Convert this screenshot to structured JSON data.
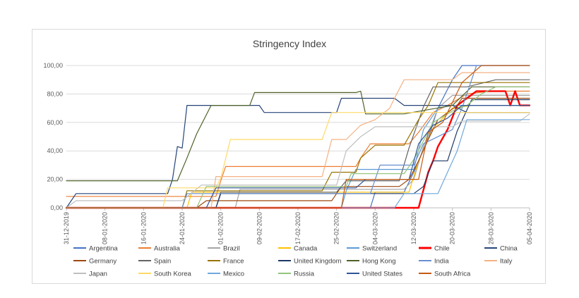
{
  "chart_data": {
    "type": "line",
    "title": "Stringency Index",
    "xlabel": "",
    "ylabel": "",
    "ylim": [
      0,
      100
    ],
    "y_ticks": [
      "0,00",
      "20,00",
      "40,00",
      "60,00",
      "80,00",
      "100,00"
    ],
    "x_range": [
      "2019-12-31",
      "2020-04-05"
    ],
    "x_tick_labels": [
      "31-12-2019",
      "08-01-2020",
      "16-01-2020",
      "24-01-2020",
      "01-02-2020",
      "09-02-2020",
      "17-02-2020",
      "25-02-2020",
      "04-03-2020",
      "12-03-2020",
      "20-03-2020",
      "28-03-2020",
      "05-04-2020"
    ],
    "grid": "horizontal",
    "legend_position": "bottom",
    "series": [
      {
        "name": "Argentina",
        "color": "#4472c4",
        "width": 1.2,
        "points": [
          [
            "2019-12-31",
            0
          ],
          [
            "2020-03-03",
            0
          ],
          [
            "2020-03-04",
            11
          ],
          [
            "2020-03-10",
            11
          ],
          [
            "2020-03-12",
            25
          ],
          [
            "2020-03-15",
            49
          ],
          [
            "2020-03-17",
            70
          ],
          [
            "2020-03-20",
            90
          ],
          [
            "2020-03-22",
            100
          ],
          [
            "2020-04-05",
            100
          ]
        ]
      },
      {
        "name": "Australia",
        "color": "#ed7d31",
        "width": 1.2,
        "points": [
          [
            "2019-12-31",
            8
          ],
          [
            "2020-01-31",
            8
          ],
          [
            "2020-02-01",
            19
          ],
          [
            "2020-02-02",
            29
          ],
          [
            "2020-02-29",
            29
          ],
          [
            "2020-03-01",
            35
          ],
          [
            "2020-03-03",
            45
          ],
          [
            "2020-03-11",
            45
          ],
          [
            "2020-03-13",
            53
          ],
          [
            "2020-03-16",
            67
          ],
          [
            "2020-03-19",
            72
          ],
          [
            "2020-03-23",
            80
          ],
          [
            "2020-03-28",
            82
          ],
          [
            "2020-04-05",
            82
          ]
        ]
      },
      {
        "name": "Brazil",
        "color": "#a5a5a5",
        "width": 1.2,
        "points": [
          [
            "2019-12-31",
            0
          ],
          [
            "2020-02-04",
            0
          ],
          [
            "2020-02-05",
            13
          ],
          [
            "2020-03-10",
            13
          ],
          [
            "2020-03-12",
            20
          ],
          [
            "2020-03-14",
            43
          ],
          [
            "2020-03-17",
            70
          ],
          [
            "2020-03-20",
            79
          ],
          [
            "2020-04-05",
            79
          ]
        ]
      },
      {
        "name": "Canada",
        "color": "#ffc000",
        "width": 1.2,
        "points": [
          [
            "2019-12-31",
            0
          ],
          [
            "2020-01-25",
            0
          ],
          [
            "2020-01-26",
            11
          ],
          [
            "2020-03-11",
            11
          ],
          [
            "2020-03-13",
            33
          ],
          [
            "2020-03-16",
            56
          ],
          [
            "2020-03-20",
            70
          ],
          [
            "2020-03-24",
            72
          ],
          [
            "2020-04-05",
            72
          ]
        ]
      },
      {
        "name": "Switzerland",
        "color": "#5b9bd5",
        "width": 1.2,
        "points": [
          [
            "2019-12-31",
            0
          ],
          [
            "2020-02-26",
            0
          ],
          [
            "2020-02-27",
            12
          ],
          [
            "2020-02-29",
            27
          ],
          [
            "2020-03-12",
            27
          ],
          [
            "2020-03-14",
            55
          ],
          [
            "2020-03-17",
            70
          ],
          [
            "2020-03-20",
            72
          ],
          [
            "2020-04-05",
            72
          ]
        ]
      },
      {
        "name": "Chile",
        "color": "#ff0000",
        "width": 2.4,
        "points": [
          [
            "2019-12-31",
            0
          ],
          [
            "2020-03-11",
            0
          ],
          [
            "2020-03-13",
            0
          ],
          [
            "2020-03-15",
            25
          ],
          [
            "2020-03-16",
            33
          ],
          [
            "2020-03-17",
            43
          ],
          [
            "2020-03-19",
            55
          ],
          [
            "2020-03-21",
            72
          ],
          [
            "2020-03-25",
            82
          ],
          [
            "2020-03-28",
            82
          ],
          [
            "2020-03-31",
            82
          ],
          [
            "2020-04-01",
            72
          ],
          [
            "2020-04-02",
            82
          ],
          [
            "2020-04-03",
            72
          ],
          [
            "2020-04-05",
            72
          ]
        ]
      },
      {
        "name": "China",
        "color": "#264478",
        "width": 1.2,
        "points": [
          [
            "2019-12-31",
            0
          ],
          [
            "2020-01-02",
            10
          ],
          [
            "2020-01-21",
            10
          ],
          [
            "2020-01-22",
            20
          ],
          [
            "2020-01-23",
            43
          ],
          [
            "2020-01-24",
            42
          ],
          [
            "2020-01-25",
            72
          ],
          [
            "2020-02-09",
            72
          ],
          [
            "2020-02-10",
            67
          ],
          [
            "2020-02-25",
            67
          ],
          [
            "2020-02-26",
            77
          ],
          [
            "2020-03-08",
            77
          ],
          [
            "2020-03-10",
            72
          ],
          [
            "2020-03-20",
            72
          ],
          [
            "2020-03-23",
            67
          ],
          [
            "2020-04-05",
            67
          ]
        ]
      },
      {
        "name": "Germany",
        "color": "#9e480e",
        "width": 1.2,
        "points": [
          [
            "2019-12-31",
            0
          ],
          [
            "2020-01-27",
            0
          ],
          [
            "2020-01-29",
            5
          ],
          [
            "2020-02-24",
            5
          ],
          [
            "2020-02-26",
            15
          ],
          [
            "2020-03-09",
            15
          ],
          [
            "2020-03-11",
            20
          ],
          [
            "2020-03-13",
            33
          ],
          [
            "2020-03-15",
            48
          ],
          [
            "2020-03-17",
            62
          ],
          [
            "2020-03-21",
            72
          ],
          [
            "2020-03-22",
            77
          ],
          [
            "2020-04-05",
            77
          ]
        ]
      },
      {
        "name": "Spain",
        "color": "#636363",
        "width": 1.2,
        "points": [
          [
            "2019-12-31",
            0
          ],
          [
            "2020-01-31",
            0
          ],
          [
            "2020-02-01",
            11
          ],
          [
            "2020-02-25",
            11
          ],
          [
            "2020-02-27",
            19
          ],
          [
            "2020-03-09",
            19
          ],
          [
            "2020-03-11",
            42
          ],
          [
            "2020-03-14",
            71
          ],
          [
            "2020-03-16",
            85
          ],
          [
            "2020-03-23",
            85
          ],
          [
            "2020-03-29",
            90
          ],
          [
            "2020-04-05",
            90
          ]
        ]
      },
      {
        "name": "France",
        "color": "#997300",
        "width": 1.2,
        "points": [
          [
            "2019-12-31",
            0
          ],
          [
            "2020-01-24",
            0
          ],
          [
            "2020-01-25",
            12
          ],
          [
            "2020-02-22",
            12
          ],
          [
            "2020-02-24",
            25
          ],
          [
            "2020-02-29",
            25
          ],
          [
            "2020-03-01",
            35
          ],
          [
            "2020-03-04",
            44
          ],
          [
            "2020-03-10",
            44
          ],
          [
            "2020-03-13",
            62
          ],
          [
            "2020-03-15",
            72
          ],
          [
            "2020-03-17",
            88
          ],
          [
            "2020-04-05",
            88
          ]
        ]
      },
      {
        "name": "United Kingdom",
        "color": "#1f3864",
        "width": 1.2,
        "points": [
          [
            "2019-12-31",
            0
          ],
          [
            "2020-01-31",
            0
          ],
          [
            "2020-02-01",
            10
          ],
          [
            "2020-03-12",
            10
          ],
          [
            "2020-03-14",
            15
          ],
          [
            "2020-03-16",
            33
          ],
          [
            "2020-03-19",
            33
          ],
          [
            "2020-03-21",
            54
          ],
          [
            "2020-03-24",
            76
          ],
          [
            "2020-04-05",
            76
          ]
        ]
      },
      {
        "name": "Hong Kong",
        "color": "#4f6228",
        "width": 1.2,
        "points": [
          [
            "2019-12-31",
            19
          ],
          [
            "2020-01-23",
            19
          ],
          [
            "2020-01-25",
            35
          ],
          [
            "2020-01-27",
            52
          ],
          [
            "2020-01-30",
            72
          ],
          [
            "2020-02-07",
            72
          ],
          [
            "2020-02-08",
            81
          ],
          [
            "2020-02-29",
            81
          ],
          [
            "2020-03-01",
            82
          ],
          [
            "2020-03-02",
            66
          ],
          [
            "2020-03-10",
            66
          ],
          [
            "2020-03-20",
            72
          ],
          [
            "2020-03-24",
            85
          ],
          [
            "2020-04-05",
            85
          ]
        ]
      },
      {
        "name": "India",
        "color": "#698ed0",
        "width": 1.2,
        "points": [
          [
            "2019-12-31",
            0
          ],
          [
            "2020-01-24",
            0
          ],
          [
            "2020-01-25",
            10
          ],
          [
            "2020-03-03",
            10
          ],
          [
            "2020-03-05",
            30
          ],
          [
            "2020-03-12",
            30
          ],
          [
            "2020-03-14",
            45
          ],
          [
            "2020-03-20",
            55
          ],
          [
            "2020-03-22",
            70
          ],
          [
            "2020-03-25",
            100
          ],
          [
            "2020-04-05",
            100
          ]
        ]
      },
      {
        "name": "Italy",
        "color": "#f4b183",
        "width": 1.2,
        "points": [
          [
            "2019-12-31",
            0
          ],
          [
            "2020-01-30",
            0
          ],
          [
            "2020-01-31",
            22
          ],
          [
            "2020-02-22",
            22
          ],
          [
            "2020-02-24",
            48
          ],
          [
            "2020-02-27",
            48
          ],
          [
            "2020-03-01",
            58
          ],
          [
            "2020-03-04",
            62
          ],
          [
            "2020-03-07",
            70
          ],
          [
            "2020-03-08",
            77
          ],
          [
            "2020-03-10",
            90
          ],
          [
            "2020-03-20",
            90
          ],
          [
            "2020-03-22",
            95
          ],
          [
            "2020-04-05",
            95
          ]
        ]
      },
      {
        "name": "Japan",
        "color": "#bfbfbf",
        "width": 1.2,
        "points": [
          [
            "2019-12-31",
            0
          ],
          [
            "2020-01-02",
            5
          ],
          [
            "2020-01-24",
            5
          ],
          [
            "2020-01-28",
            16
          ],
          [
            "2020-02-25",
            16
          ],
          [
            "2020-02-27",
            40
          ],
          [
            "2020-03-01",
            50
          ],
          [
            "2020-03-04",
            57
          ],
          [
            "2020-03-20",
            57
          ],
          [
            "2020-03-22",
            61
          ],
          [
            "2020-04-03",
            61
          ],
          [
            "2020-04-05",
            66
          ]
        ]
      },
      {
        "name": "South Korea",
        "color": "#ffd966",
        "width": 1.2,
        "points": [
          [
            "2019-12-31",
            0
          ],
          [
            "2020-01-20",
            0
          ],
          [
            "2020-01-21",
            14
          ],
          [
            "2020-01-31",
            14
          ],
          [
            "2020-02-01",
            21
          ],
          [
            "2020-02-03",
            48
          ],
          [
            "2020-02-22",
            48
          ],
          [
            "2020-02-24",
            67
          ],
          [
            "2020-04-05",
            67
          ]
        ]
      },
      {
        "name": "Mexico",
        "color": "#6fa8dc",
        "width": 1.2,
        "points": [
          [
            "2019-12-31",
            0
          ],
          [
            "2020-03-08",
            0
          ],
          [
            "2020-03-10",
            10
          ],
          [
            "2020-03-17",
            10
          ],
          [
            "2020-03-19",
            25
          ],
          [
            "2020-03-21",
            40
          ],
          [
            "2020-03-23",
            62
          ],
          [
            "2020-04-05",
            62
          ]
        ]
      },
      {
        "name": "Russia",
        "color": "#93c47d",
        "width": 1.2,
        "points": [
          [
            "2019-12-31",
            0
          ],
          [
            "2020-01-27",
            0
          ],
          [
            "2020-01-29",
            15
          ],
          [
            "2020-02-27",
            15
          ],
          [
            "2020-02-28",
            24
          ],
          [
            "2020-03-10",
            24
          ],
          [
            "2020-03-12",
            34
          ],
          [
            "2020-03-16",
            60
          ],
          [
            "2020-03-20",
            68
          ],
          [
            "2020-03-23",
            72
          ],
          [
            "2020-03-26",
            80
          ],
          [
            "2020-03-29",
            85
          ],
          [
            "2020-04-05",
            85
          ]
        ]
      },
      {
        "name": "United States",
        "color": "#2f5597",
        "width": 1.2,
        "points": [
          [
            "2019-12-31",
            0
          ],
          [
            "2020-01-29",
            0
          ],
          [
            "2020-01-31",
            14
          ],
          [
            "2020-02-29",
            14
          ],
          [
            "2020-03-02",
            20
          ],
          [
            "2020-03-11",
            20
          ],
          [
            "2020-03-13",
            45
          ],
          [
            "2020-03-16",
            58
          ],
          [
            "2020-03-19",
            63
          ],
          [
            "2020-03-22",
            72
          ],
          [
            "2020-04-05",
            72
          ]
        ]
      },
      {
        "name": "South Africa",
        "color": "#c55a11",
        "width": 1.2,
        "points": [
          [
            "2019-12-31",
            0
          ],
          [
            "2020-02-26",
            0
          ],
          [
            "2020-02-27",
            20
          ],
          [
            "2020-03-13",
            20
          ],
          [
            "2020-03-15",
            53
          ],
          [
            "2020-03-18",
            60
          ],
          [
            "2020-03-22",
            88
          ],
          [
            "2020-03-26",
            100
          ],
          [
            "2020-04-05",
            100
          ]
        ]
      }
    ]
  }
}
